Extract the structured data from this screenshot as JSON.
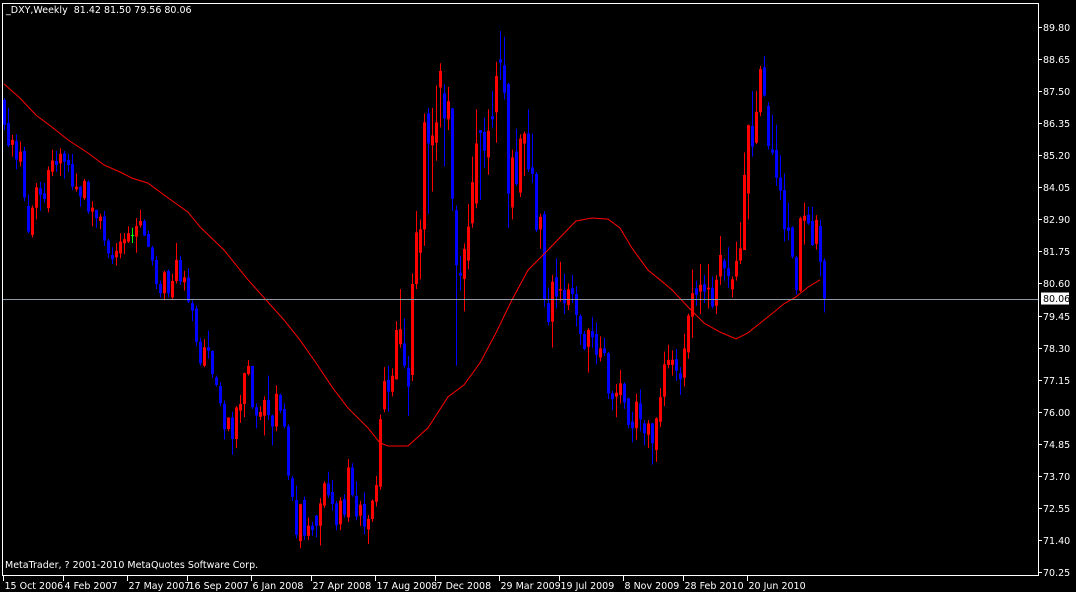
{
  "header": {
    "symbol_period": "_DXY,Weekly",
    "ohlc_text": "81.42 81.50 79.56 80.06"
  },
  "footer": {
    "copyright": "MetaTrader, ? 2001-2010 MetaQuotes Software Corp."
  },
  "colors": {
    "background": "#000000",
    "axes": "#ffffff",
    "bull": "#ff0000",
    "bear": "#0000ff",
    "doji": "#00ff00",
    "ma": "#ff0000",
    "bid_line": "#8c9aa8"
  },
  "chart_data": {
    "type": "candlestick",
    "title": "_DXY,Weekly",
    "ylim": [
      70.25,
      89.8
    ],
    "grid": false,
    "current_price": "80.06",
    "y_ticks": [
      "89.80",
      "88.65",
      "87.50",
      "86.35",
      "85.20",
      "84.05",
      "82.90",
      "81.75",
      "80.60",
      "79.45",
      "78.30",
      "77.15",
      "76.00",
      "74.85",
      "73.70",
      "72.55",
      "71.40",
      "70.25"
    ],
    "x_ticks": [
      {
        "bar": 0,
        "label": "15 Oct 2006"
      },
      {
        "bar": 15,
        "label": "4 Feb 2007"
      },
      {
        "bar": 31,
        "label": "27 May 2007"
      },
      {
        "bar": 46,
        "label": "16 Sep 2007"
      },
      {
        "bar": 62,
        "label": "6 Jan 2008"
      },
      {
        "bar": 77,
        "label": "27 Apr 2008"
      },
      {
        "bar": 93,
        "label": "17 Aug 2008"
      },
      {
        "bar": 108,
        "label": "7 Dec 2008"
      },
      {
        "bar": 124,
        "label": "29 Mar 2009"
      },
      {
        "bar": 139,
        "label": "19 Jul 2009"
      },
      {
        "bar": 155,
        "label": "8 Nov 2009"
      },
      {
        "bar": 170,
        "label": "28 Feb 2010"
      },
      {
        "bar": 186,
        "label": "20 Jun 2010"
      }
    ],
    "bars_ohlc": [
      [
        87.18,
        87.25,
        86.1,
        86.29
      ],
      [
        86.35,
        86.9,
        85.5,
        85.55
      ],
      [
        85.57,
        85.93,
        85.15,
        85.75
      ],
      [
        85.71,
        85.95,
        84.7,
        85.05
      ],
      [
        84.97,
        85.7,
        84.8,
        85.33
      ],
      [
        85.35,
        85.5,
        83.55,
        83.69
      ],
      [
        83.38,
        83.8,
        82.4,
        82.46
      ],
      [
        82.34,
        83.4,
        82.25,
        83.32
      ],
      [
        83.32,
        84.2,
        82.9,
        84.05
      ],
      [
        84.01,
        84.25,
        83.2,
        83.78
      ],
      [
        83.83,
        84.2,
        83.5,
        83.63
      ],
      [
        83.3,
        84.8,
        83.15,
        84.67
      ],
      [
        84.61,
        85.4,
        84.45,
        85.01
      ],
      [
        85.0,
        85.35,
        84.6,
        84.85
      ],
      [
        84.91,
        85.45,
        84.45,
        85.25
      ],
      [
        85.27,
        85.35,
        84.35,
        84.97
      ],
      [
        85.03,
        85.25,
        84.6,
        84.85
      ],
      [
        84.88,
        85.25,
        83.95,
        84.07
      ],
      [
        83.98,
        84.55,
        83.9,
        84.07
      ],
      [
        84.07,
        84.1,
        83.35,
        83.72
      ],
      [
        83.66,
        84.35,
        83.6,
        84.28
      ],
      [
        84.25,
        84.3,
        83.1,
        83.18
      ],
      [
        83.18,
        83.55,
        82.65,
        83.32
      ],
      [
        83.24,
        83.25,
        82.6,
        82.94
      ],
      [
        82.84,
        83.1,
        82.55,
        83.0
      ],
      [
        83.0,
        83.2,
        81.95,
        82.14
      ],
      [
        82.14,
        82.2,
        81.5,
        81.68
      ],
      [
        81.62,
        81.9,
        81.3,
        81.47
      ],
      [
        81.54,
        82.05,
        81.25,
        81.77
      ],
      [
        81.68,
        82.4,
        81.5,
        82.1
      ],
      [
        82.04,
        82.4,
        81.65,
        82.19
      ],
      [
        82.1,
        82.65,
        82.05,
        82.4
      ],
      [
        82.34,
        82.6,
        82.05,
        82.34
      ],
      [
        82.28,
        82.95,
        81.7,
        82.66
      ],
      [
        82.68,
        83.25,
        82.6,
        82.84
      ],
      [
        82.84,
        82.9,
        82.3,
        82.32
      ],
      [
        82.38,
        82.5,
        81.9,
        81.92
      ],
      [
        81.89,
        81.95,
        81.25,
        81.42
      ],
      [
        81.44,
        81.6,
        80.4,
        80.57
      ],
      [
        80.58,
        80.7,
        80.1,
        80.25
      ],
      [
        80.25,
        81.05,
        80.0,
        81.0
      ],
      [
        81.05,
        81.1,
        80.1,
        80.25
      ],
      [
        80.1,
        80.95,
        80.0,
        80.69
      ],
      [
        80.69,
        82.05,
        80.6,
        81.44
      ],
      [
        81.44,
        81.6,
        80.55,
        80.67
      ],
      [
        80.64,
        81.05,
        80.35,
        80.82
      ],
      [
        80.81,
        81.15,
        79.9,
        79.95
      ],
      [
        79.89,
        80.0,
        79.25,
        79.63
      ],
      [
        79.7,
        79.8,
        78.35,
        78.51
      ],
      [
        78.51,
        78.65,
        77.65,
        77.74
      ],
      [
        77.65,
        78.6,
        77.6,
        78.31
      ],
      [
        78.31,
        78.9,
        77.9,
        78.19
      ],
      [
        78.18,
        78.2,
        77.2,
        77.35
      ],
      [
        77.23,
        77.3,
        76.9,
        76.96
      ],
      [
        76.92,
        77.05,
        76.2,
        76.3
      ],
      [
        76.28,
        76.4,
        75.0,
        75.37
      ],
      [
        75.38,
        75.8,
        75.3,
        75.79
      ],
      [
        75.79,
        76.0,
        74.45,
        75.02
      ],
      [
        75.02,
        76.2,
        74.7,
        76.15
      ],
      [
        76.04,
        76.6,
        75.6,
        76.28
      ],
      [
        76.28,
        77.4,
        75.8,
        77.38
      ],
      [
        77.35,
        77.85,
        77.3,
        77.64
      ],
      [
        77.64,
        77.65,
        76.1,
        76.16
      ],
      [
        76.16,
        76.3,
        75.4,
        75.86
      ],
      [
        75.82,
        76.2,
        75.7,
        75.99
      ],
      [
        75.86,
        76.55,
        75.15,
        76.42
      ],
      [
        76.42,
        77.3,
        75.7,
        75.88
      ],
      [
        75.86,
        75.9,
        74.8,
        75.47
      ],
      [
        75.47,
        76.95,
        75.3,
        76.64
      ],
      [
        76.6,
        76.65,
        75.95,
        76.04
      ],
      [
        76.09,
        76.3,
        75.4,
        75.47
      ],
      [
        75.47,
        75.55,
        73.55,
        73.71
      ],
      [
        73.61,
        73.7,
        72.8,
        72.95
      ],
      [
        72.83,
        73.35,
        71.45,
        71.58
      ],
      [
        71.36,
        72.7,
        71.1,
        72.68
      ],
      [
        72.83,
        72.95,
        71.4,
        71.55
      ],
      [
        71.55,
        72.2,
        71.4,
        71.91
      ],
      [
        71.91,
        72.05,
        71.55,
        71.76
      ],
      [
        72.27,
        72.3,
        71.5,
        71.91
      ],
      [
        71.91,
        72.9,
        71.2,
        72.71
      ],
      [
        72.63,
        73.5,
        72.55,
        73.43
      ],
      [
        73.43,
        73.85,
        72.9,
        73.01
      ],
      [
        73.12,
        73.55,
        72.45,
        72.69
      ],
      [
        72.71,
        72.8,
        71.75,
        71.94
      ],
      [
        71.96,
        72.93,
        71.75,
        72.81
      ],
      [
        72.86,
        73.05,
        72.2,
        72.3
      ],
      [
        72.21,
        74.3,
        72.05,
        74.0
      ],
      [
        74.0,
        74.15,
        72.95,
        73.01
      ],
      [
        72.98,
        73.5,
        72.1,
        72.24
      ],
      [
        72.27,
        72.8,
        71.9,
        72.66
      ],
      [
        72.69,
        73.1,
        71.6,
        71.88
      ],
      [
        71.78,
        72.3,
        71.25,
        72.15
      ],
      [
        72.15,
        72.85,
        72.05,
        72.81
      ],
      [
        72.77,
        73.7,
        72.6,
        73.37
      ],
      [
        73.31,
        75.9,
        73.2,
        75.73
      ],
      [
        76.09,
        77.6,
        75.98,
        77.1
      ],
      [
        77.14,
        77.65,
        76.0,
        76.72
      ],
      [
        76.72,
        77.55,
        76.55,
        77.29
      ],
      [
        77.16,
        79.25,
        77.15,
        78.93
      ],
      [
        78.42,
        80.4,
        78.3,
        78.96
      ],
      [
        78.45,
        79.35,
        77.55,
        77.65
      ],
      [
        77.58,
        78.0,
        75.85,
        76.9
      ],
      [
        77.32,
        80.96,
        77.1,
        80.58
      ],
      [
        80.58,
        83.2,
        80.4,
        82.43
      ],
      [
        81.7,
        82.9,
        80.75,
        82.54
      ],
      [
        82.54,
        86.7,
        81.95,
        86.38
      ],
      [
        86.7,
        86.9,
        83.1,
        85.62
      ],
      [
        85.56,
        86.9,
        83.9,
        85.91
      ],
      [
        85.65,
        87.7,
        85.0,
        86.38
      ],
      [
        87.63,
        88.5,
        86.2,
        88.22
      ],
      [
        87.42,
        87.75,
        84.8,
        86.52
      ],
      [
        86.49,
        87.65,
        86.1,
        87.14
      ],
      [
        86.88,
        86.9,
        83.2,
        83.64
      ],
      [
        83.23,
        83.4,
        77.65,
        81.26
      ],
      [
        80.98,
        81.6,
        80.35,
        80.88
      ],
      [
        80.76,
        82.04,
        79.6,
        81.84
      ],
      [
        81.42,
        83.45,
        81.1,
        82.64
      ],
      [
        82.76,
        85.15,
        82.6,
        84.23
      ],
      [
        83.47,
        86.85,
        83.3,
        85.62
      ],
      [
        86.1,
        86.1,
        83.6,
        86.0
      ],
      [
        86.04,
        86.55,
        84.76,
        85.36
      ],
      [
        85.12,
        86.85,
        84.5,
        86.07
      ],
      [
        86.6,
        87.5,
        86.2,
        86.49
      ],
      [
        86.74,
        88.55,
        85.65,
        88.04
      ],
      [
        88.64,
        89.65,
        87.9,
        88.52
      ],
      [
        88.43,
        89.45,
        87.2,
        87.44
      ],
      [
        87.75,
        87.8,
        82.6,
        83.83
      ],
      [
        83.33,
        85.4,
        82.9,
        85.12
      ],
      [
        85.33,
        86.15,
        84.1,
        84.17
      ],
      [
        83.86,
        85.95,
        83.7,
        85.8
      ],
      [
        85.62,
        86.05,
        84.45,
        85.98
      ],
      [
        85.98,
        86.85,
        84.6,
        84.7
      ],
      [
        84.76,
        85.98,
        84.2,
        84.53
      ],
      [
        84.53,
        84.6,
        82.45,
        82.52
      ],
      [
        82.54,
        83.1,
        81.85,
        82.99
      ],
      [
        83.09,
        83.2,
        79.75,
        80.03
      ],
      [
        79.89,
        80.45,
        79.1,
        79.22
      ],
      [
        79.23,
        80.9,
        78.3,
        80.66
      ],
      [
        80.82,
        81.5,
        79.7,
        80.13
      ],
      [
        80.35,
        81.38,
        79.95,
        80.4
      ],
      [
        80.37,
        80.95,
        79.5,
        79.89
      ],
      [
        79.83,
        80.6,
        79.65,
        80.39
      ],
      [
        80.43,
        80.9,
        79.9,
        80.22
      ],
      [
        80.22,
        80.5,
        79.05,
        79.47
      ],
      [
        79.43,
        79.5,
        78.4,
        78.79
      ],
      [
        78.79,
        78.9,
        78.2,
        78.25
      ],
      [
        78.33,
        79.0,
        77.4,
        78.93
      ],
      [
        78.89,
        79.4,
        78.3,
        78.67
      ],
      [
        78.79,
        79.2,
        77.7,
        78.04
      ],
      [
        77.95,
        78.7,
        77.8,
        78.27
      ],
      [
        78.27,
        78.65,
        78.0,
        78.1
      ],
      [
        78.1,
        78.15,
        76.45,
        76.66
      ],
      [
        76.66,
        76.75,
        76.05,
        76.45
      ],
      [
        76.54,
        77.0,
        75.8,
        76.68
      ],
      [
        76.6,
        77.5,
        76.3,
        77.02
      ],
      [
        77.0,
        77.05,
        76.1,
        76.33
      ],
      [
        76.48,
        76.5,
        75.4,
        75.53
      ],
      [
        75.64,
        76.0,
        74.9,
        75.41
      ],
      [
        75.41,
        76.65,
        75.0,
        76.36
      ],
      [
        76.3,
        76.8,
        75.3,
        75.73
      ],
      [
        75.58,
        75.7,
        74.8,
        75.22
      ],
      [
        75.17,
        75.7,
        74.7,
        75.58
      ],
      [
        75.58,
        75.6,
        74.1,
        74.87
      ],
      [
        74.63,
        75.8,
        74.2,
        75.76
      ],
      [
        75.64,
        76.85,
        75.45,
        76.52
      ],
      [
        76.54,
        78.15,
        76.2,
        77.7
      ],
      [
        77.68,
        78.4,
        77.55,
        77.86
      ],
      [
        77.68,
        78.2,
        77.3,
        77.86
      ],
      [
        77.88,
        78.25,
        77.1,
        77.47
      ],
      [
        77.38,
        77.6,
        76.6,
        77.16
      ],
      [
        77.22,
        78.8,
        76.9,
        78.27
      ],
      [
        78.13,
        79.52,
        77.9,
        79.45
      ],
      [
        79.41,
        81.1,
        78.65,
        80.25
      ],
      [
        80.43,
        80.7,
        79.8,
        80.19
      ],
      [
        80.31,
        81.3,
        79.5,
        80.55
      ],
      [
        80.57,
        80.9,
        79.9,
        80.31
      ],
      [
        80.39,
        81.3,
        79.7,
        80.45
      ],
      [
        80.45,
        80.85,
        79.7,
        79.77
      ],
      [
        79.8,
        80.9,
        79.5,
        80.73
      ],
      [
        80.85,
        82.3,
        80.55,
        81.62
      ],
      [
        81.42,
        81.5,
        80.7,
        81.14
      ],
      [
        81.14,
        81.9,
        80.45,
        80.87
      ],
      [
        80.39,
        80.85,
        80.1,
        80.75
      ],
      [
        80.85,
        82.1,
        80.7,
        81.41
      ],
      [
        81.42,
        82.8,
        81.3,
        81.86
      ],
      [
        81.8,
        85.3,
        81.8,
        84.49
      ],
      [
        83.83,
        86.3,
        82.9,
        86.28
      ],
      [
        86.25,
        87.5,
        85.15,
        85.51
      ],
      [
        85.65,
        87.5,
        85.6,
        86.76
      ],
      [
        86.74,
        88.4,
        86.6,
        88.29
      ],
      [
        88.35,
        88.75,
        87.3,
        87.34
      ],
      [
        86.97,
        87.1,
        85.4,
        85.54
      ],
      [
        85.41,
        86.65,
        85.2,
        85.29
      ],
      [
        85.39,
        86.3,
        84.1,
        84.4
      ],
      [
        84.4,
        85.2,
        83.6,
        83.93
      ],
      [
        83.95,
        84.55,
        82.1,
        82.55
      ],
      [
        82.61,
        83.5,
        82.15,
        82.49
      ],
      [
        82.61,
        82.65,
        81.5,
        81.56
      ],
      [
        81.54,
        81.6,
        80.2,
        80.37
      ],
      [
        80.34,
        83.0,
        80.3,
        82.94
      ],
      [
        82.85,
        83.5,
        82.0,
        83.03
      ],
      [
        83.06,
        83.35,
        82.7,
        82.76
      ],
      [
        82.84,
        83.35,
        81.95,
        81.98
      ],
      [
        82.02,
        83.05,
        81.82,
        82.88
      ],
      [
        82.66,
        82.9,
        80.85,
        81.38
      ],
      [
        81.42,
        81.5,
        79.56,
        80.06
      ]
    ],
    "moving_average": [
      [
        0,
        87.76
      ],
      [
        4,
        87.25
      ],
      [
        8,
        86.64
      ],
      [
        12,
        86.21
      ],
      [
        16,
        85.75
      ],
      [
        21,
        85.28
      ],
      [
        25,
        84.85
      ],
      [
        29,
        84.6
      ],
      [
        32,
        84.38
      ],
      [
        36,
        84.2
      ],
      [
        41,
        83.67
      ],
      [
        46,
        83.16
      ],
      [
        49,
        82.63
      ],
      [
        55,
        81.8
      ],
      [
        61,
        80.73
      ],
      [
        70,
        79.29
      ],
      [
        74,
        78.57
      ],
      [
        78,
        77.75
      ],
      [
        82,
        76.89
      ],
      [
        86,
        76.13
      ],
      [
        91,
        75.42
      ],
      [
        94,
        74.88
      ],
      [
        96,
        74.77
      ],
      [
        101,
        74.77
      ],
      [
        106,
        75.42
      ],
      [
        111,
        76.53
      ],
      [
        115,
        76.96
      ],
      [
        119,
        77.75
      ],
      [
        123,
        78.83
      ],
      [
        127,
        80.01
      ],
      [
        131,
        81.08
      ],
      [
        136,
        81.8
      ],
      [
        139,
        82.25
      ],
      [
        143,
        82.84
      ],
      [
        147,
        82.95
      ],
      [
        151,
        82.91
      ],
      [
        154,
        82.59
      ],
      [
        157,
        81.87
      ],
      [
        161,
        81.08
      ],
      [
        164,
        80.73
      ],
      [
        167,
        80.37
      ],
      [
        171,
        79.76
      ],
      [
        175,
        79.18
      ],
      [
        179,
        78.86
      ],
      [
        183,
        78.61
      ],
      [
        186,
        78.83
      ],
      [
        191,
        79.4
      ],
      [
        195,
        79.87
      ],
      [
        198,
        80.12
      ],
      [
        201,
        80.47
      ],
      [
        204,
        80.73
      ]
    ]
  }
}
